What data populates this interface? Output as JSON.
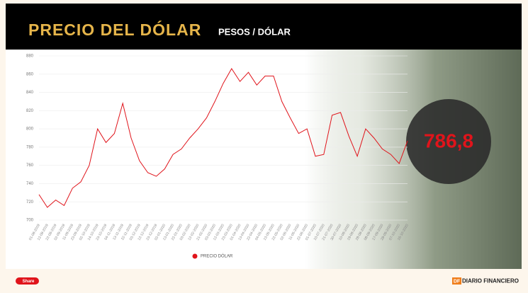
{
  "header": {
    "title": "PRECIO DEL DÓLAR",
    "subtitle": "PESOS / DÓLAR"
  },
  "chart_data": {
    "type": "line",
    "categories": [
      "01-08-2019",
      "12-08-2019",
      "22-08-2019",
      "02-09-2019",
      "11-09-2019",
      "23-09-2019",
      "02-10-2019",
      "14-10-2019",
      "23-10-2019",
      "04-11-2019",
      "13-11-2019",
      "22-11-2019",
      "03-12-2019",
      "12-12-2019",
      "23-12-2019",
      "02-01-2020",
      "13-01-2020",
      "22-01-2020",
      "03-02-2020",
      "12-02-2020",
      "21-02-2020",
      "03-03-2020",
      "12-03-2020",
      "23-03-2020",
      "01-04-2020",
      "13-04-2020",
      "22-04-2020",
      "04-05-2020",
      "13-05-2020",
      "22-05-2020",
      "02-06-2020",
      "11-06-2020",
      "22-06-2020",
      "01-07-2020",
      "10-07-2020",
      "21-07-2020",
      "30-07-2020",
      "10-08-2020",
      "19-08-2020",
      "28-08-2020",
      "08-09-2020",
      "17-09-2020",
      "28-09-2020",
      "07-10-2020",
      "16-10-2020"
    ],
    "series": [
      {
        "name": "PRECIO DÓLAR",
        "color": "#e0141b",
        "values": [
          728,
          714,
          722,
          716,
          735,
          742,
          760,
          800,
          785,
          795,
          828,
          790,
          765,
          752,
          748,
          756,
          772,
          778,
          790,
          800,
          812,
          830,
          850,
          866,
          852,
          862,
          848,
          858,
          858,
          830,
          812,
          795,
          800,
          770,
          772,
          815,
          818,
          792,
          770,
          800,
          790,
          778,
          772,
          762,
          786.8
        ],
        "value_labels": [
          null,
          null,
          null,
          null,
          null,
          null,
          null,
          null,
          null,
          null,
          null,
          null,
          null,
          null,
          null,
          null,
          null,
          null,
          null,
          null,
          null,
          null,
          null,
          null,
          null,
          null,
          null,
          null,
          null,
          null,
          null,
          null,
          null,
          null,
          null,
          null,
          null,
          null,
          null,
          null,
          null,
          null,
          null,
          null,
          "786,8"
        ]
      }
    ],
    "ylim": [
      700,
      880
    ],
    "yticks": [
      700,
      720,
      740,
      760,
      780,
      800,
      820,
      840,
      860,
      880
    ],
    "grid": true,
    "legend": "bottom"
  },
  "footer": {
    "share": "Share",
    "brand_mark": "DF",
    "brand": "DIARIO FINANCIERO"
  }
}
